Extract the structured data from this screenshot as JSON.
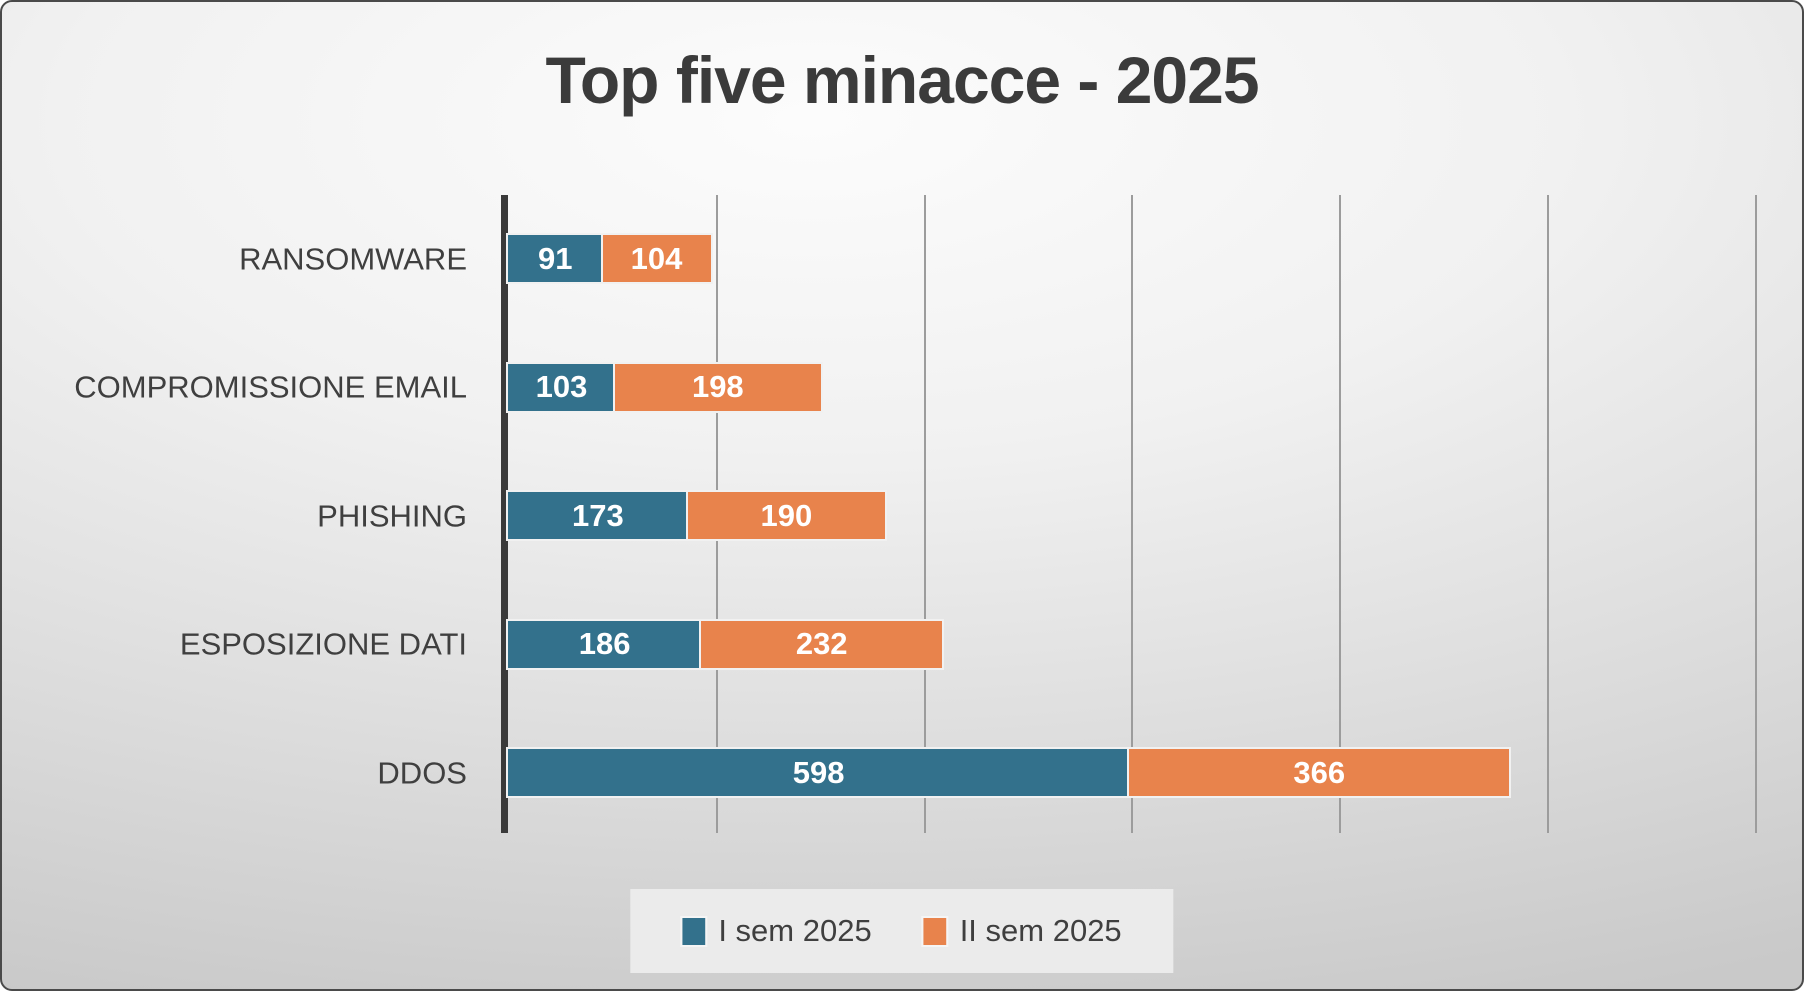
{
  "chart_data": {
    "type": "bar",
    "orientation": "horizontal",
    "stacked": true,
    "title": "Top five minacce - 2025",
    "categories": [
      "RANSOMWARE",
      "COMPROMISSIONE EMAIL",
      "PHISHING",
      "ESPOSIZIONE DATI",
      "DDOS"
    ],
    "series": [
      {
        "name": "I sem 2025",
        "color": "#33718C",
        "values": [
          91,
          103,
          173,
          186,
          598
        ]
      },
      {
        "name": "II sem 2025",
        "color": "#E8834C",
        "values": [
          104,
          198,
          190,
          232,
          366
        ]
      }
    ],
    "totals": [
      195,
      301,
      363,
      418,
      964
    ],
    "xlabel": "",
    "ylabel": "",
    "xlim": [
      0,
      1237
    ],
    "gridline_interval": 200,
    "gridlines": [
      200,
      400,
      600,
      800,
      1000,
      1200
    ],
    "tick_labels_shown": false,
    "grid": true,
    "value_labels": "inside-white-bold",
    "legend_position": "bottom",
    "axis_color": "#3a3a3a",
    "gridline_color": "#9c9c9c",
    "title_color": "#3b3b3b",
    "label_color": "#3f3f3f"
  }
}
